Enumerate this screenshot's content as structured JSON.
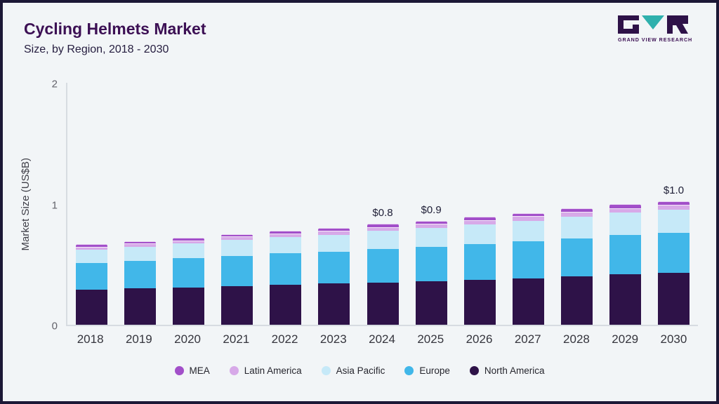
{
  "page": {
    "title": "Cycling Helmets Market",
    "subtitle": "Size, by Region, 2018 - 2030",
    "logo_text": "GRAND VIEW RESEARCH"
  },
  "chart_data": {
    "type": "bar",
    "stacked": true,
    "title": "Cycling Helmets Market Size, by Region, 2018 - 2030",
    "xlabel": "",
    "ylabel": "Market Size (US$B)",
    "ylim": [
      0,
      2
    ],
    "yticks": [
      2,
      1,
      0
    ],
    "grid": false,
    "legend_position": "bottom",
    "categories": [
      "2018",
      "2019",
      "2020",
      "2021",
      "2022",
      "2023",
      "2024",
      "2025",
      "2026",
      "2027",
      "2028",
      "2029",
      "2030"
    ],
    "series": [
      {
        "name": "North America",
        "color": "#2e1248",
        "values": [
          0.29,
          0.3,
          0.31,
          0.32,
          0.33,
          0.34,
          0.35,
          0.36,
          0.37,
          0.385,
          0.4,
          0.415,
          0.43
        ]
      },
      {
        "name": "Europe",
        "color": "#41b7e9",
        "values": [
          0.22,
          0.23,
          0.24,
          0.25,
          0.26,
          0.265,
          0.275,
          0.285,
          0.295,
          0.305,
          0.315,
          0.325,
          0.33
        ]
      },
      {
        "name": "Asia Pacific",
        "color": "#c6e9f8",
        "values": [
          0.11,
          0.115,
          0.12,
          0.13,
          0.135,
          0.14,
          0.15,
          0.155,
          0.165,
          0.17,
          0.18,
          0.185,
          0.19
        ]
      },
      {
        "name": "Latin America",
        "color": "#d7a9e8",
        "values": [
          0.025,
          0.025,
          0.027,
          0.028,
          0.03,
          0.03,
          0.032,
          0.033,
          0.035,
          0.036,
          0.038,
          0.04,
          0.04
        ]
      },
      {
        "name": "MEA",
        "color": "#a24fc9",
        "values": [
          0.02,
          0.02,
          0.021,
          0.022,
          0.023,
          0.024,
          0.025,
          0.026,
          0.027,
          0.028,
          0.029,
          0.03,
          0.03
        ]
      }
    ],
    "annotations": [
      {
        "category": "2024",
        "text": "$0.8"
      },
      {
        "category": "2025",
        "text": "$0.9"
      },
      {
        "category": "2030",
        "text": "$1.0"
      }
    ],
    "legend": [
      "MEA",
      "Latin America",
      "Asia Pacific",
      "Europe",
      "North America"
    ]
  }
}
